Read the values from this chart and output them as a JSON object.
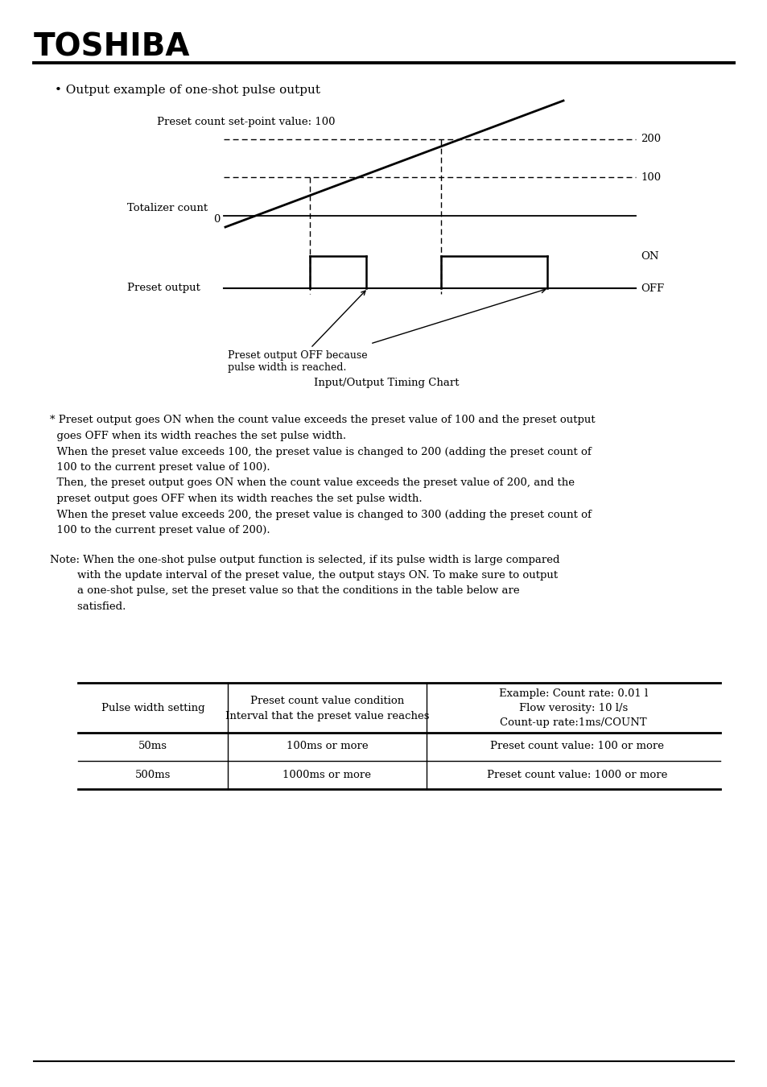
{
  "title_text": "TOSHIBA",
  "bullet_text": "• Output example of one-shot pulse output",
  "preset_label": "Preset count set-point value: 100",
  "totalizer_label": "Totalizer count",
  "preset_output_label": "Preset output",
  "on_label": "ON",
  "off_label": "OFF",
  "label_200": "200",
  "label_100": "100",
  "label_0": "0",
  "chart_subtitle": "Input/Output Timing Chart",
  "annotation_text": "Preset output OFF because\npulse width is reached.",
  "star_note_lines": [
    "* Preset output goes ON when the count value exceeds the preset value of 100 and the preset output",
    "  goes OFF when its width reaches the set pulse width.",
    "  When the preset value exceeds 100, the preset value is changed to 200 (adding the preset count of",
    "  100 to the current preset value of 100).",
    "  Then, the preset output goes ON when the count value exceeds the preset value of 200, and the",
    "  preset output goes OFF when its width reaches the set pulse width.",
    "  When the preset value exceeds 200, the preset value is changed to 300 (adding the preset count of",
    "  100 to the current preset value of 200)."
  ],
  "note_lines": [
    "Note: When the one-shot pulse output function is selected, if its pulse width is large compared",
    "        with the update interval of the preset value, the output stays ON. To make sure to output",
    "        a one-shot pulse, set the preset value so that the conditions in the table below are",
    "        satisfied."
  ],
  "table_col1_header": "Pulse width setting",
  "table_col2_header_line1": "Preset count value condition",
  "table_col2_header_line2": "Interval that the preset value reaches",
  "table_col3_header_line1": "Example: Count rate: 0.01 l",
  "table_col3_header_line2": "Flow verosity: 10 l/s",
  "table_col3_header_line3": "Count-up rate:1ms/COUNT",
  "table_row1_col1": "50ms",
  "table_row1_col2": "100ms or more",
  "table_row1_col3": "Preset count value: 100 or more",
  "table_row2_col1": "500ms",
  "table_row2_col2": "1000ms or more",
  "table_row2_col3": "Preset count value: 1000 or more",
  "bg_color": "#ffffff",
  "text_color": "#000000"
}
